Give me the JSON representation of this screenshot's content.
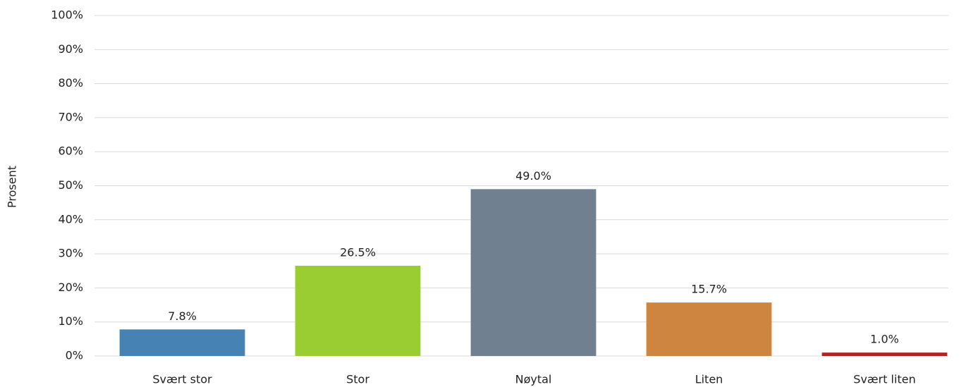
{
  "chart_data": {
    "type": "bar",
    "ylabel": "Prosent",
    "categories": [
      "Svært stor",
      "Stor",
      "Nøytal",
      "Liten",
      "Svært liten"
    ],
    "values": [
      7.8,
      26.5,
      49.0,
      15.7,
      1.0
    ],
    "value_labels": [
      "7.8%",
      "26.5%",
      "49.0%",
      "15.7%",
      "1.0%"
    ],
    "colors": [
      "#4682b4",
      "#9acd32",
      "#708090",
      "#cd853f",
      "#b22222"
    ],
    "ylim": [
      0,
      100
    ],
    "yticks": [
      {
        "value": 0,
        "label": "0%"
      },
      {
        "value": 10,
        "label": "10%"
      },
      {
        "value": 20,
        "label": "20%"
      },
      {
        "value": 30,
        "label": "30%"
      },
      {
        "value": 40,
        "label": "40%"
      },
      {
        "value": 50,
        "label": "50%"
      },
      {
        "value": 60,
        "label": "60%"
      },
      {
        "value": 70,
        "label": "70%"
      },
      {
        "value": 80,
        "label": "80%"
      },
      {
        "value": 90,
        "label": "90%"
      },
      {
        "value": 100,
        "label": "100%"
      }
    ],
    "grid": true
  }
}
